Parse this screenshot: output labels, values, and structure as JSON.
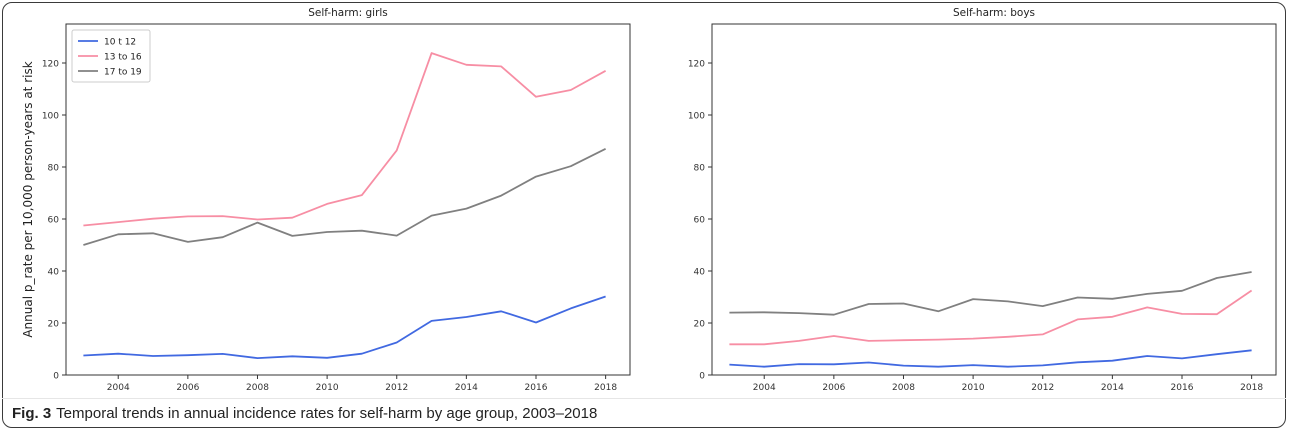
{
  "caption": {
    "label": "Fig. 3",
    "text": "Temporal trends in annual incidence rates for self-harm by age group, 2003–2018"
  },
  "chart_data": [
    {
      "type": "line",
      "title": "Self-harm: girls",
      "xlabel": "",
      "ylabel": "Annual p_rate per 10,000 person-years at risk",
      "x": [
        2003,
        2004,
        2005,
        2006,
        2007,
        2008,
        2009,
        2010,
        2011,
        2012,
        2013,
        2014,
        2015,
        2016,
        2017,
        2018
      ],
      "xlim": [
        2002.5,
        2018.7
      ],
      "ylim": [
        0,
        135
      ],
      "xticks": [
        2004,
        2006,
        2008,
        2010,
        2012,
        2014,
        2016,
        2018
      ],
      "yticks": [
        0,
        20,
        40,
        60,
        80,
        100,
        120
      ],
      "legend": "top-left",
      "series": [
        {
          "name": "10 t 12",
          "color": "#4169e1",
          "values": [
            7.5,
            8.2,
            7.3,
            7.6,
            8.1,
            6.5,
            7.2,
            6.6,
            8.2,
            12.5,
            20.8,
            22.3,
            24.5,
            20.2,
            25.6,
            30.2
          ]
        },
        {
          "name": "13 to 16",
          "color": "#f78ea4",
          "values": [
            57.5,
            58.8,
            60.1,
            61.0,
            61.1,
            59.8,
            60.5,
            65.8,
            69.2,
            86.4,
            123.8,
            119.3,
            118.7,
            107.0,
            109.6,
            117.0
          ]
        },
        {
          "name": "17 to 19",
          "color": "#808080",
          "values": [
            50.0,
            54.1,
            54.5,
            51.2,
            53.0,
            58.6,
            53.5,
            55.0,
            55.5,
            53.6,
            61.3,
            64.0,
            69.0,
            76.3,
            80.3,
            87.0
          ]
        }
      ]
    },
    {
      "type": "line",
      "title": "Self-harm: boys",
      "xlabel": "",
      "ylabel": "",
      "x": [
        2003,
        2004,
        2005,
        2006,
        2007,
        2008,
        2009,
        2010,
        2011,
        2012,
        2013,
        2014,
        2015,
        2016,
        2017,
        2018
      ],
      "xlim": [
        2002.5,
        2018.7
      ],
      "ylim": [
        0,
        135
      ],
      "xticks": [
        2004,
        2006,
        2008,
        2010,
        2012,
        2014,
        2016,
        2018
      ],
      "yticks": [
        0,
        20,
        40,
        60,
        80,
        100,
        120
      ],
      "legend": "none",
      "series": [
        {
          "name": "10 t 12",
          "color": "#4169e1",
          "values": [
            4.0,
            3.2,
            4.2,
            4.1,
            4.8,
            3.6,
            3.2,
            3.8,
            3.2,
            3.7,
            4.9,
            5.5,
            7.3,
            6.4,
            8.0,
            9.5
          ]
        },
        {
          "name": "13 to 16",
          "color": "#f78ea4",
          "values": [
            11.8,
            11.8,
            13.1,
            15.0,
            13.1,
            13.4,
            13.6,
            14.0,
            14.7,
            15.6,
            21.4,
            22.4,
            26.0,
            23.5,
            23.4,
            32.5
          ]
        },
        {
          "name": "17 to 19",
          "color": "#808080",
          "values": [
            24.0,
            24.1,
            23.8,
            23.2,
            27.3,
            27.5,
            24.5,
            29.2,
            28.3,
            26.5,
            29.8,
            29.3,
            31.2,
            32.4,
            37.3,
            39.6
          ]
        }
      ]
    }
  ]
}
